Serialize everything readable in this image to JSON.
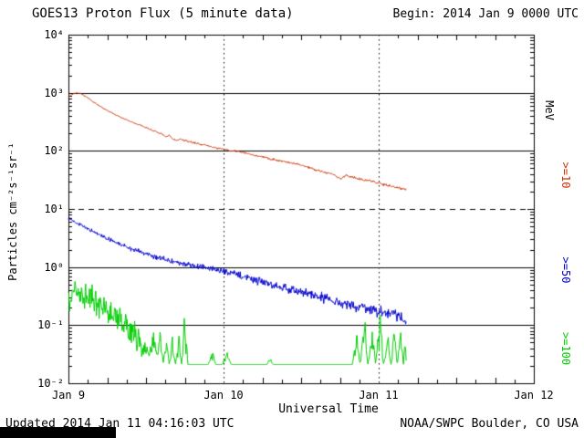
{
  "header": {
    "title": "GOES13 Proton Flux (5 minute data)",
    "begin_label": "Begin: 2014 Jan 9 0000 UTC"
  },
  "footer": {
    "updated": "Updated 2014 Jan 11 04:16:03 UTC",
    "source": "NOAA/SWPC Boulder, CO USA"
  },
  "y_axis": {
    "label": "Particles cm⁻²s⁻¹sr⁻¹",
    "tick_labels": [
      "10⁴",
      "10³",
      "10²",
      "10¹",
      "10⁰",
      "10⁻¹",
      "10⁻²"
    ],
    "tick_log_values": [
      4,
      3,
      2,
      1,
      0,
      -1,
      -2
    ],
    "scale": "log10"
  },
  "x_axis": {
    "label": "Universal Time",
    "tick_labels": [
      "Jan 9",
      "Jan 10",
      "Jan 11",
      "Jan 12"
    ],
    "span_days": 3
  },
  "right_axis": {
    "unit_label": "MeV",
    "series_labels": [
      {
        "text": ">=10",
        "color": "#cc3300"
      },
      {
        "text": ">=50",
        "color": "#0000cc"
      },
      {
        "text": ">=100",
        "color": "#00cc00"
      }
    ]
  },
  "chart_data": {
    "type": "line",
    "title": "GOES13 Proton Flux (5 minute data)",
    "xlabel": "Universal Time",
    "ylabel": "Particles cm⁻²s⁻¹sr⁻¹",
    "y_scale": "log10",
    "ylim": [
      0.01,
      10000
    ],
    "x_range": [
      "2014 Jan 9 0000 UTC",
      "2014 Jan 12 0000 UTC"
    ],
    "x_span_days": 3,
    "legend_position": "right-rotated",
    "grid": {
      "solid_hlines_log10": [
        3,
        2,
        0,
        -1
      ],
      "dashed_hlines_log10": [
        1
      ],
      "dotted_vlines_days": [
        1,
        2
      ]
    },
    "series": [
      {
        "name": ">=10 MeV",
        "color": "#cc3300",
        "seed": 7,
        "noise_start": 0.008,
        "noise_end": 0.022,
        "points_days_flux": [
          [
            0.0,
            820
          ],
          [
            0.02,
            930
          ],
          [
            0.05,
            1000
          ],
          [
            0.08,
            960
          ],
          [
            0.12,
            830
          ],
          [
            0.16,
            700
          ],
          [
            0.2,
            590
          ],
          [
            0.24,
            510
          ],
          [
            0.28,
            450
          ],
          [
            0.32,
            400
          ],
          [
            0.36,
            355
          ],
          [
            0.4,
            320
          ],
          [
            0.44,
            290
          ],
          [
            0.48,
            265
          ],
          [
            0.52,
            240
          ],
          [
            0.56,
            215
          ],
          [
            0.6,
            195
          ],
          [
            0.63,
            172
          ],
          [
            0.65,
            188
          ],
          [
            0.67,
            162
          ],
          [
            0.7,
            150
          ],
          [
            0.72,
            160
          ],
          [
            0.75,
            150
          ],
          [
            0.8,
            140
          ],
          [
            0.85,
            131
          ],
          [
            0.9,
            122
          ],
          [
            0.95,
            113
          ],
          [
            1.0,
            106
          ],
          [
            1.05,
            100
          ],
          [
            1.1,
            97
          ],
          [
            1.15,
            90
          ],
          [
            1.2,
            84
          ],
          [
            1.25,
            79
          ],
          [
            1.3,
            73
          ],
          [
            1.35,
            69
          ],
          [
            1.4,
            65
          ],
          [
            1.45,
            61
          ],
          [
            1.5,
            57
          ],
          [
            1.55,
            52
          ],
          [
            1.6,
            47
          ],
          [
            1.65,
            43
          ],
          [
            1.7,
            40
          ],
          [
            1.73,
            36
          ],
          [
            1.76,
            33
          ],
          [
            1.79,
            38
          ],
          [
            1.82,
            36
          ],
          [
            1.86,
            34
          ],
          [
            1.9,
            32
          ],
          [
            1.95,
            30
          ],
          [
            2.0,
            28
          ],
          [
            2.05,
            26
          ],
          [
            2.1,
            24
          ],
          [
            2.14,
            23
          ],
          [
            2.18,
            22
          ]
        ]
      },
      {
        "name": ">=50 MeV",
        "color": "#0000cc",
        "seed": 13,
        "noise_start": 0.02,
        "noise_end": 0.09,
        "points_days_flux": [
          [
            0.0,
            7.0
          ],
          [
            0.03,
            6.4
          ],
          [
            0.06,
            5.6
          ],
          [
            0.1,
            5.0
          ],
          [
            0.14,
            4.3
          ],
          [
            0.18,
            3.8
          ],
          [
            0.22,
            3.4
          ],
          [
            0.26,
            3.0
          ],
          [
            0.3,
            2.7
          ],
          [
            0.34,
            2.45
          ],
          [
            0.38,
            2.2
          ],
          [
            0.42,
            2.0
          ],
          [
            0.46,
            1.85
          ],
          [
            0.5,
            1.7
          ],
          [
            0.54,
            1.58
          ],
          [
            0.58,
            1.46
          ],
          [
            0.62,
            1.36
          ],
          [
            0.66,
            1.27
          ],
          [
            0.7,
            1.19
          ],
          [
            0.74,
            1.12
          ],
          [
            0.78,
            1.07
          ],
          [
            0.82,
            1.04
          ],
          [
            0.86,
            1.0
          ],
          [
            0.9,
            0.96
          ],
          [
            0.95,
            0.9
          ],
          [
            1.0,
            0.85
          ],
          [
            1.05,
            0.79
          ],
          [
            1.1,
            0.73
          ],
          [
            1.15,
            0.67
          ],
          [
            1.2,
            0.61
          ],
          [
            1.25,
            0.56
          ],
          [
            1.3,
            0.51
          ],
          [
            1.35,
            0.47
          ],
          [
            1.4,
            0.435
          ],
          [
            1.45,
            0.4
          ],
          [
            1.5,
            0.37
          ],
          [
            1.55,
            0.345
          ],
          [
            1.6,
            0.32
          ],
          [
            1.65,
            0.295
          ],
          [
            1.7,
            0.27
          ],
          [
            1.75,
            0.25
          ],
          [
            1.8,
            0.23
          ],
          [
            1.85,
            0.215
          ],
          [
            1.9,
            0.2
          ],
          [
            1.95,
            0.185
          ],
          [
            2.0,
            0.17
          ],
          [
            2.05,
            0.16
          ],
          [
            2.1,
            0.15
          ],
          [
            2.14,
            0.14
          ],
          [
            2.18,
            0.13
          ]
        ]
      },
      {
        "name": ">=100 MeV",
        "color": "#00cc00",
        "seed": 99,
        "noise_start": 0.25,
        "noise_end": 0.25,
        "floor": 0.021,
        "points_days_flux": [
          [
            0.0,
            0.35
          ],
          [
            0.02,
            0.28
          ],
          [
            0.04,
            0.45
          ],
          [
            0.06,
            0.3
          ],
          [
            0.08,
            0.38
          ],
          [
            0.1,
            0.26
          ],
          [
            0.13,
            0.33
          ],
          [
            0.16,
            0.22
          ],
          [
            0.19,
            0.28
          ],
          [
            0.22,
            0.2
          ],
          [
            0.25,
            0.16
          ],
          [
            0.28,
            0.19
          ],
          [
            0.31,
            0.13
          ],
          [
            0.34,
            0.11
          ],
          [
            0.37,
            0.09
          ],
          [
            0.4,
            0.075
          ],
          [
            0.43,
            0.06
          ],
          [
            0.46,
            0.05
          ],
          [
            0.49,
            0.042
          ],
          [
            0.52,
            0.035
          ],
          [
            0.55,
            0.05
          ],
          [
            0.57,
            0.028
          ],
          [
            0.59,
            0.06
          ],
          [
            0.61,
            0.024
          ],
          [
            0.63,
            0.05
          ],
          [
            0.65,
            0.021
          ],
          [
            0.67,
            0.045
          ],
          [
            0.69,
            0.021
          ],
          [
            0.71,
            0.06
          ],
          [
            0.73,
            0.021
          ],
          [
            0.75,
            0.09
          ],
          [
            0.77,
            0.021
          ],
          [
            0.9,
            0.021
          ],
          [
            0.93,
            0.032
          ],
          [
            0.95,
            0.021
          ],
          [
            0.99,
            0.021
          ],
          [
            1.02,
            0.03
          ],
          [
            1.05,
            0.021
          ],
          [
            1.28,
            0.021
          ],
          [
            1.3,
            0.026
          ],
          [
            1.32,
            0.021
          ],
          [
            1.6,
            0.021
          ],
          [
            1.83,
            0.021
          ],
          [
            1.86,
            0.055
          ],
          [
            1.88,
            0.021
          ],
          [
            1.91,
            0.085
          ],
          [
            1.93,
            0.021
          ],
          [
            1.96,
            0.06
          ],
          [
            1.98,
            0.021
          ],
          [
            2.01,
            0.1
          ],
          [
            2.03,
            0.021
          ],
          [
            2.06,
            0.05
          ],
          [
            2.08,
            0.021
          ],
          [
            2.1,
            0.09
          ],
          [
            2.12,
            0.021
          ],
          [
            2.14,
            0.065
          ],
          [
            2.16,
            0.021
          ],
          [
            2.17,
            0.05
          ],
          [
            2.18,
            0.021
          ]
        ]
      }
    ]
  }
}
